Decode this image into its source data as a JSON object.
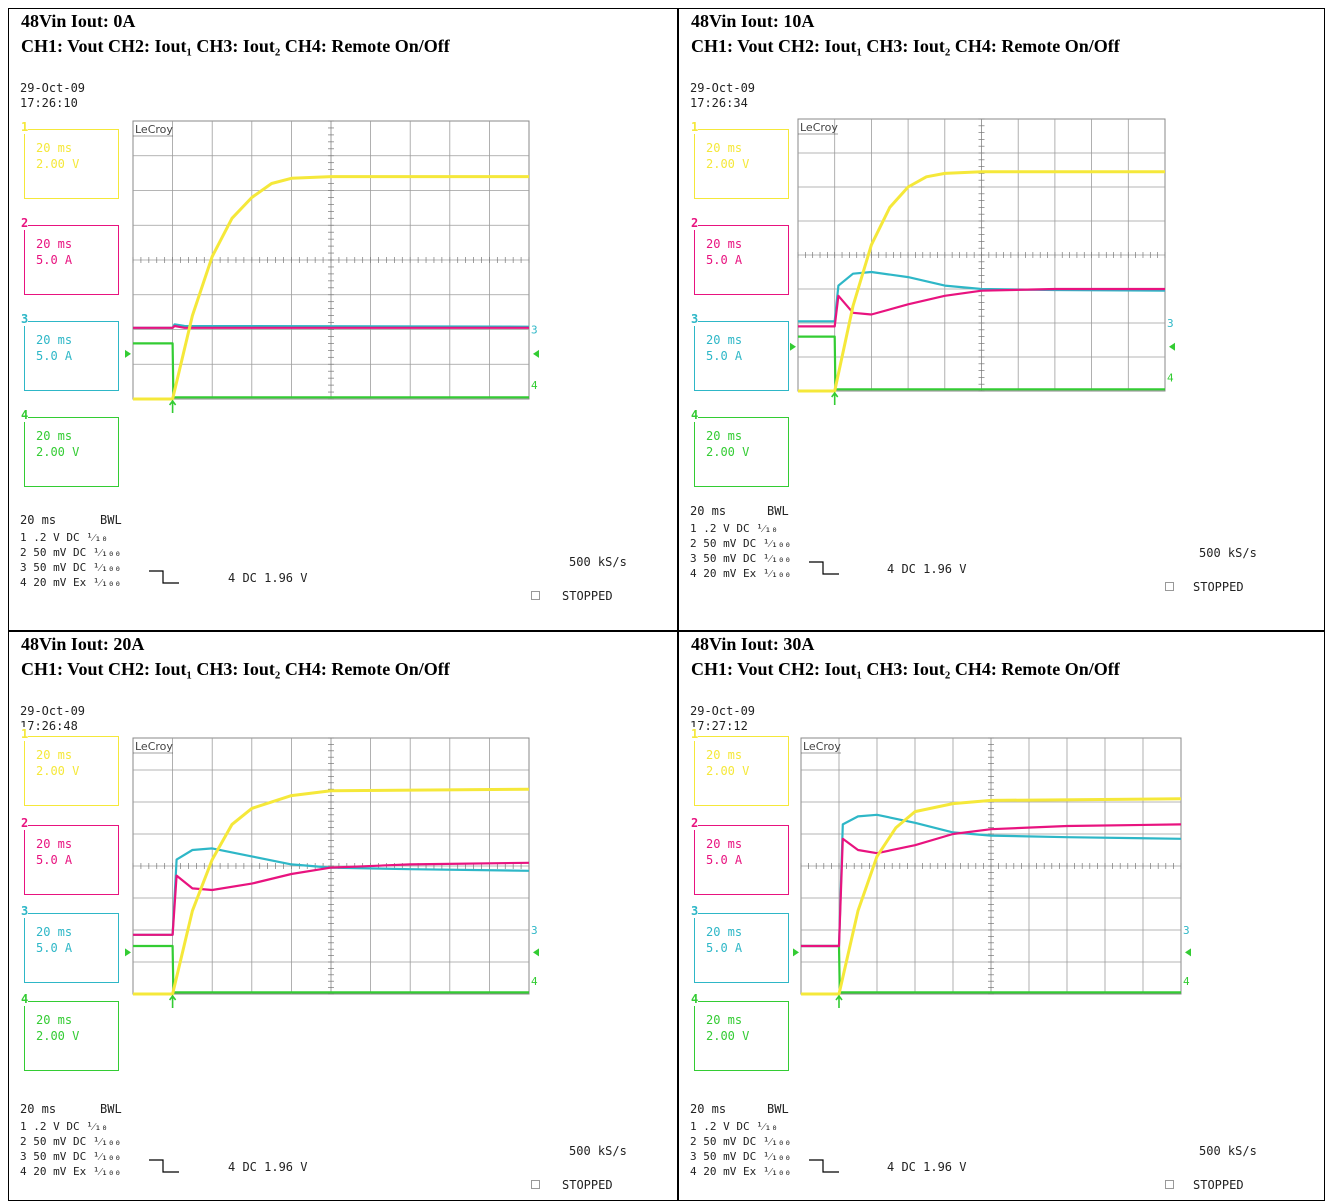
{
  "colors": {
    "ch1": "#f5e83a",
    "ch2": "#e8137f",
    "ch3": "#2eb7c7",
    "ch4": "#33cc33",
    "grid": "#9c9c9c"
  },
  "common": {
    "vin": "48Vin",
    "legend": "CH1: Vout   CH2: Iout₁ CH3: Iout₂ CH4: Remote On/Off",
    "brand": "LeCroy",
    "date": "29-Oct-09",
    "ch1_box": [
      "20 ms",
      "2.00 V"
    ],
    "ch2_box": [
      "20 ms",
      "5.0 A"
    ],
    "ch3_box": [
      "20 ms",
      "5.0 A"
    ],
    "ch4_box": [
      "20 ms",
      "2.00 V"
    ],
    "timebase": "20 ms",
    "bwl": "BWL",
    "chan_rows": [
      "1 .2  V  DC ¹⁄₁₀",
      "2 50 mV  DC ¹⁄₁₀₀",
      "3 50 mV  DC ¹⁄₁₀₀",
      "4 20 mV  Ex ¹⁄₁₀₀"
    ],
    "trigger": "4  DC 1.96 V",
    "sample_rate": "500 kS/s",
    "status": "STOPPED"
  },
  "chart_data": [
    {
      "type": "line",
      "title": "48Vin   Iout: 0A",
      "time": "17:26:10",
      "x_unit": "div",
      "xlim": [
        0,
        10
      ],
      "ylim": [
        0,
        8
      ],
      "series": [
        {
          "name": "CH1",
          "values": [
            [
              0,
              0
            ],
            [
              1,
              0
            ],
            [
              1.5,
              2.4
            ],
            [
              2,
              4.1
            ],
            [
              2.5,
              5.2
            ],
            [
              3,
              5.8
            ],
            [
              3.5,
              6.2
            ],
            [
              4,
              6.35
            ],
            [
              5,
              6.4
            ],
            [
              10,
              6.4
            ]
          ]
        },
        {
          "name": "CH2",
          "values": [
            [
              0,
              2.05
            ],
            [
              1,
              2.05
            ],
            [
              1.05,
              2.1
            ],
            [
              1.3,
              2.05
            ],
            [
              10,
              2.05
            ]
          ]
        },
        {
          "name": "CH3",
          "values": [
            [
              0,
              2.05
            ],
            [
              1,
              2.05
            ],
            [
              1.05,
              2.15
            ],
            [
              1.3,
              2.1
            ],
            [
              10,
              2.08
            ]
          ]
        },
        {
          "name": "CH4",
          "values": [
            [
              0,
              1.6
            ],
            [
              1,
              1.6
            ],
            [
              1.02,
              0.05
            ],
            [
              10,
              0.05
            ]
          ]
        }
      ]
    },
    {
      "type": "line",
      "title": "48Vin   Iout: 10A",
      "time": "17:26:34",
      "x_unit": "div",
      "xlim": [
        0,
        10
      ],
      "ylim": [
        0,
        8
      ],
      "series": [
        {
          "name": "CH1",
          "values": [
            [
              0,
              0
            ],
            [
              1,
              0
            ],
            [
              1.5,
              2.5
            ],
            [
              2,
              4.3
            ],
            [
              2.5,
              5.4
            ],
            [
              3,
              6
            ],
            [
              3.5,
              6.3
            ],
            [
              4,
              6.4
            ],
            [
              5,
              6.45
            ],
            [
              10,
              6.45
            ]
          ]
        },
        {
          "name": "CH2",
          "values": [
            [
              0,
              1.9
            ],
            [
              1,
              1.9
            ],
            [
              1.1,
              2.8
            ],
            [
              1.5,
              2.3
            ],
            [
              2,
              2.25
            ],
            [
              3,
              2.55
            ],
            [
              4,
              2.8
            ],
            [
              5,
              2.95
            ],
            [
              7,
              3.0
            ],
            [
              10,
              3.0
            ]
          ]
        },
        {
          "name": "CH3",
          "values": [
            [
              0,
              2.05
            ],
            [
              1,
              2.05
            ],
            [
              1.1,
              3.1
            ],
            [
              1.5,
              3.45
            ],
            [
              2,
              3.5
            ],
            [
              3,
              3.35
            ],
            [
              4,
              3.1
            ],
            [
              5,
              3.0
            ],
            [
              7,
              2.97
            ],
            [
              10,
              2.95
            ]
          ]
        },
        {
          "name": "CH4",
          "values": [
            [
              0,
              1.6
            ],
            [
              1,
              1.6
            ],
            [
              1.02,
              0.05
            ],
            [
              10,
              0.05
            ]
          ]
        }
      ]
    },
    {
      "type": "line",
      "title": "48Vin   Iout: 20A",
      "time": "17:26:48",
      "x_unit": "div",
      "xlim": [
        0,
        10
      ],
      "ylim": [
        0,
        8
      ],
      "series": [
        {
          "name": "CH1",
          "values": [
            [
              0,
              0
            ],
            [
              1,
              0
            ],
            [
              1.5,
              2.6
            ],
            [
              2,
              4.2
            ],
            [
              2.5,
              5.3
            ],
            [
              3,
              5.8
            ],
            [
              4,
              6.2
            ],
            [
              5,
              6.35
            ],
            [
              10,
              6.4
            ]
          ]
        },
        {
          "name": "CH2",
          "values": [
            [
              0,
              1.85
            ],
            [
              1,
              1.85
            ],
            [
              1.1,
              3.7
            ],
            [
              1.5,
              3.3
            ],
            [
              2,
              3.25
            ],
            [
              3,
              3.45
            ],
            [
              4,
              3.75
            ],
            [
              5,
              3.95
            ],
            [
              7,
              4.05
            ],
            [
              10,
              4.1
            ]
          ]
        },
        {
          "name": "CH3",
          "values": [
            [
              0,
              1.85
            ],
            [
              1,
              1.85
            ],
            [
              1.1,
              4.2
            ],
            [
              1.5,
              4.5
            ],
            [
              2,
              4.55
            ],
            [
              3,
              4.3
            ],
            [
              4,
              4.05
            ],
            [
              5,
              3.95
            ],
            [
              7,
              3.9
            ],
            [
              10,
              3.85
            ]
          ]
        },
        {
          "name": "CH4",
          "values": [
            [
              0,
              1.5
            ],
            [
              1,
              1.5
            ],
            [
              1.02,
              0.05
            ],
            [
              10,
              0.05
            ]
          ]
        }
      ]
    },
    {
      "type": "line",
      "title": "48Vin   Iout: 30A",
      "time": "17:27:12",
      "x_unit": "div",
      "xlim": [
        0,
        10
      ],
      "ylim": [
        0,
        8
      ],
      "series": [
        {
          "name": "CH1",
          "values": [
            [
              0,
              0
            ],
            [
              1,
              0
            ],
            [
              1.5,
              2.6
            ],
            [
              2,
              4.3
            ],
            [
              2.5,
              5.2
            ],
            [
              3,
              5.7
            ],
            [
              4,
              5.95
            ],
            [
              5,
              6.05
            ],
            [
              10,
              6.1
            ]
          ]
        },
        {
          "name": "CH2",
          "values": [
            [
              0,
              1.5
            ],
            [
              1,
              1.5
            ],
            [
              1.1,
              4.85
            ],
            [
              1.5,
              4.5
            ],
            [
              2,
              4.4
            ],
            [
              3,
              4.65
            ],
            [
              4,
              5.0
            ],
            [
              5,
              5.15
            ],
            [
              7,
              5.25
            ],
            [
              10,
              5.3
            ]
          ]
        },
        {
          "name": "CH3",
          "values": [
            [
              0,
              1.5
            ],
            [
              1,
              1.5
            ],
            [
              1.1,
              5.3
            ],
            [
              1.5,
              5.55
            ],
            [
              2,
              5.6
            ],
            [
              3,
              5.35
            ],
            [
              4,
              5.05
            ],
            [
              5,
              4.95
            ],
            [
              7,
              4.9
            ],
            [
              10,
              4.85
            ]
          ]
        },
        {
          "name": "CH4",
          "values": [
            [
              0,
              1.5
            ],
            [
              1,
              1.5
            ],
            [
              1.02,
              0.05
            ],
            [
              10,
              0.05
            ]
          ]
        }
      ]
    }
  ]
}
